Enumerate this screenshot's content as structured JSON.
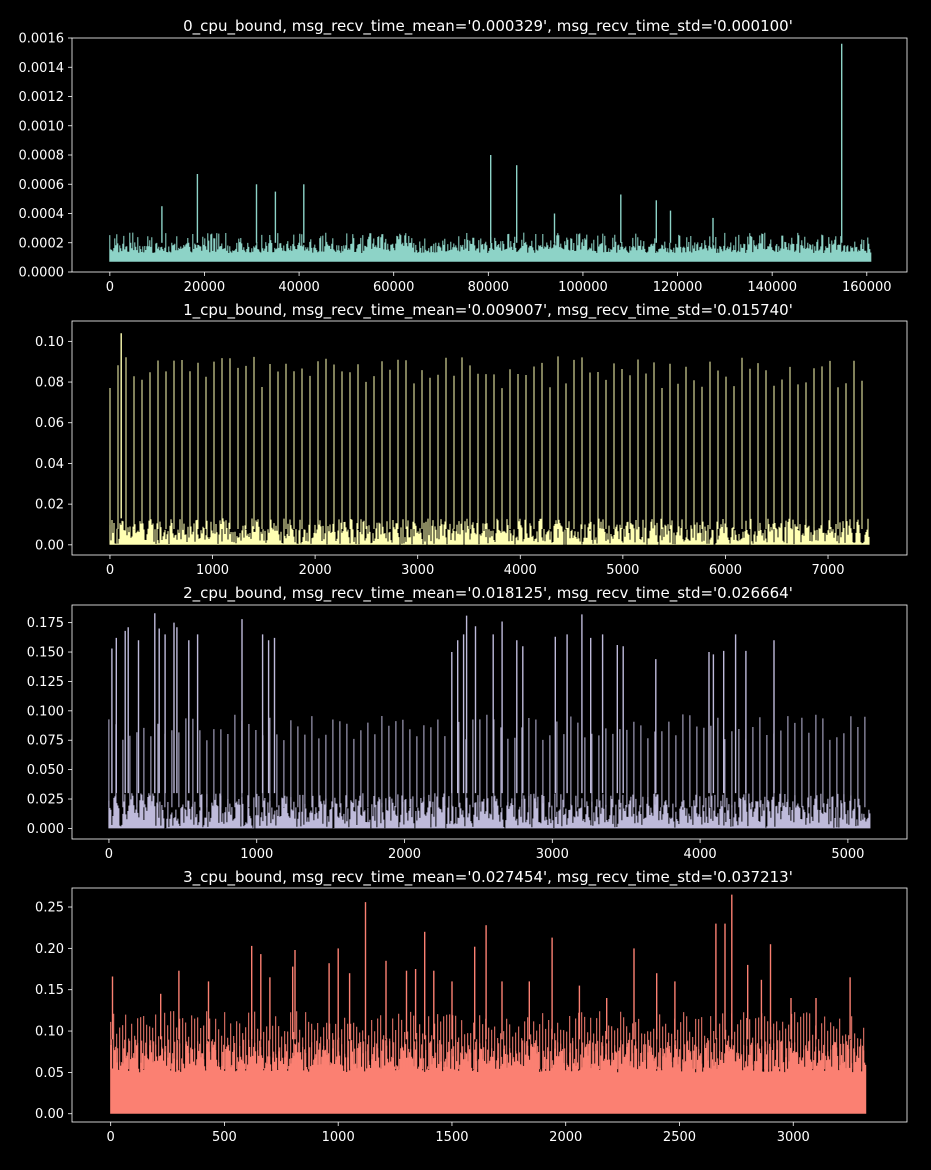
{
  "figure": {
    "background": "#000000",
    "foreground": "#ffffff"
  },
  "chart_data": [
    {
      "type": "line",
      "title": "0_cpu_bound, msg_recv_time_mean='0.000329', msg_recv_time_std='0.000100'",
      "color": "#8dd3c7",
      "xlim": [
        -8000,
        168500
      ],
      "ylim": [
        0.0,
        0.0016
      ],
      "x_ticks": [
        0,
        20000,
        40000,
        60000,
        80000,
        100000,
        120000,
        140000,
        160000
      ],
      "x_tick_labels": [
        "0",
        "20000",
        "40000",
        "60000",
        "80000",
        "100000",
        "120000",
        "140000",
        "160000"
      ],
      "y_ticks": [
        0.0,
        0.0002,
        0.0004,
        0.0006,
        0.0008,
        0.001,
        0.0012,
        0.0014,
        0.0016
      ],
      "y_tick_labels": [
        "0.0000",
        "0.0002",
        "0.0004",
        "0.0006",
        "0.0008",
        "0.0010",
        "0.0012",
        "0.0014",
        "0.0016"
      ],
      "x_range": [
        0,
        160800
      ],
      "baseline": 7e-05,
      "band": [
        0.00013,
        0.0002
      ],
      "whisker_max": 0.00027,
      "spikes": [
        {
          "x": 11000,
          "y": 0.00045
        },
        {
          "x": 18500,
          "y": 0.00067
        },
        {
          "x": 31000,
          "y": 0.0006
        },
        {
          "x": 35000,
          "y": 0.00055
        },
        {
          "x": 41000,
          "y": 0.0006
        },
        {
          "x": 80500,
          "y": 0.0008
        },
        {
          "x": 86000,
          "y": 0.00073
        },
        {
          "x": 94000,
          "y": 0.0004
        },
        {
          "x": 108000,
          "y": 0.00053
        },
        {
          "x": 115500,
          "y": 0.00049
        },
        {
          "x": 118500,
          "y": 0.00042
        },
        {
          "x": 127500,
          "y": 0.00037
        },
        {
          "x": 154700,
          "y": 0.00156
        }
      ]
    },
    {
      "type": "line",
      "title": "1_cpu_bound, msg_recv_time_mean='0.009007', msg_recv_time_std='0.015740'",
      "color": "#ffffb3",
      "xlim": [
        -370,
        7770
      ],
      "ylim": [
        -0.005,
        0.11
      ],
      "x_ticks": [
        0,
        1000,
        2000,
        3000,
        4000,
        5000,
        6000,
        7000
      ],
      "x_tick_labels": [
        "0",
        "1000",
        "2000",
        "3000",
        "4000",
        "5000",
        "6000",
        "7000"
      ],
      "y_ticks": [
        0.0,
        0.02,
        0.04,
        0.06,
        0.08,
        0.1
      ],
      "y_tick_labels": [
        "0.00",
        "0.02",
        "0.04",
        "0.06",
        "0.08",
        "0.10"
      ],
      "x_range": [
        0,
        7400
      ],
      "baseline": 0.0,
      "band": [
        0.0,
        0.013
      ],
      "peak_every": 28,
      "peak_range": [
        0.077,
        0.093
      ],
      "spikes": [
        {
          "x": 110,
          "y": 0.104
        }
      ]
    },
    {
      "type": "line",
      "title": "2_cpu_bound, msg_recv_time_mean='0.018125', msg_recv_time_std='0.026664'",
      "color": "#bebada",
      "xlim": [
        -250,
        5400
      ],
      "ylim": [
        -0.009,
        0.19
      ],
      "x_ticks": [
        0,
        1000,
        2000,
        3000,
        4000,
        5000
      ],
      "x_tick_labels": [
        "0",
        "1000",
        "2000",
        "3000",
        "4000",
        "5000"
      ],
      "y_ticks": [
        0.0,
        0.025,
        0.05,
        0.075,
        0.1,
        0.125,
        0.15,
        0.175
      ],
      "y_tick_labels": [
        "0.000",
        "0.025",
        "0.050",
        "0.075",
        "0.100",
        "0.125",
        "0.150",
        "0.175"
      ],
      "x_range": [
        0,
        5150
      ],
      "baseline": 0.0,
      "band": [
        0.0,
        0.03
      ],
      "peak_every": 22,
      "peak_range": [
        0.075,
        0.097
      ],
      "spikes": [
        {
          "x": 20,
          "y": 0.153
        },
        {
          "x": 50,
          "y": 0.162
        },
        {
          "x": 110,
          "y": 0.168
        },
        {
          "x": 130,
          "y": 0.171
        },
        {
          "x": 200,
          "y": 0.16
        },
        {
          "x": 310,
          "y": 0.183
        },
        {
          "x": 340,
          "y": 0.17
        },
        {
          "x": 380,
          "y": 0.165
        },
        {
          "x": 440,
          "y": 0.175
        },
        {
          "x": 460,
          "y": 0.171
        },
        {
          "x": 540,
          "y": 0.16
        },
        {
          "x": 600,
          "y": 0.165
        },
        {
          "x": 900,
          "y": 0.178
        },
        {
          "x": 1040,
          "y": 0.165
        },
        {
          "x": 1080,
          "y": 0.16
        },
        {
          "x": 1120,
          "y": 0.162
        },
        {
          "x": 2320,
          "y": 0.15
        },
        {
          "x": 2360,
          "y": 0.16
        },
        {
          "x": 2400,
          "y": 0.165
        },
        {
          "x": 2420,
          "y": 0.181
        },
        {
          "x": 2480,
          "y": 0.172
        },
        {
          "x": 2600,
          "y": 0.165
        },
        {
          "x": 2660,
          "y": 0.176
        },
        {
          "x": 2760,
          "y": 0.16
        },
        {
          "x": 2800,
          "y": 0.155
        },
        {
          "x": 3020,
          "y": 0.163
        },
        {
          "x": 3100,
          "y": 0.165
        },
        {
          "x": 3200,
          "y": 0.182
        },
        {
          "x": 3260,
          "y": 0.162
        },
        {
          "x": 3340,
          "y": 0.165
        },
        {
          "x": 3440,
          "y": 0.156
        },
        {
          "x": 3480,
          "y": 0.155
        },
        {
          "x": 3700,
          "y": 0.144
        },
        {
          "x": 4060,
          "y": 0.15
        },
        {
          "x": 4090,
          "y": 0.148
        },
        {
          "x": 4160,
          "y": 0.151
        },
        {
          "x": 4240,
          "y": 0.165
        },
        {
          "x": 4310,
          "y": 0.151
        },
        {
          "x": 4500,
          "y": 0.16
        }
      ]
    },
    {
      "type": "line",
      "title": "3_cpu_bound, msg_recv_time_mean='0.027454', msg_recv_time_std='0.037213'",
      "color": "#fb8072",
      "xlim": [
        -170,
        3500
      ],
      "ylim": [
        -0.01,
        0.273
      ],
      "x_ticks": [
        0,
        500,
        1000,
        1500,
        2000,
        2500,
        3000
      ],
      "x_tick_labels": [
        "0",
        "500",
        "1000",
        "1500",
        "2000",
        "2500",
        "3000"
      ],
      "y_ticks": [
        0.0,
        0.05,
        0.1,
        0.15,
        0.2,
        0.25
      ],
      "y_tick_labels": [
        "0.00",
        "0.05",
        "0.10",
        "0.15",
        "0.20",
        "0.25"
      ],
      "x_range": [
        0,
        3320
      ],
      "baseline": 0.0,
      "band": [
        0.05,
        0.09
      ],
      "peak_every": 10,
      "peak_range": [
        0.09,
        0.125
      ],
      "spikes": [
        {
          "x": 8,
          "y": 0.166
        },
        {
          "x": 220,
          "y": 0.145
        },
        {
          "x": 300,
          "y": 0.173
        },
        {
          "x": 430,
          "y": 0.16
        },
        {
          "x": 620,
          "y": 0.203
        },
        {
          "x": 660,
          "y": 0.193
        },
        {
          "x": 700,
          "y": 0.165
        },
        {
          "x": 800,
          "y": 0.178
        },
        {
          "x": 810,
          "y": 0.198
        },
        {
          "x": 960,
          "y": 0.182
        },
        {
          "x": 1000,
          "y": 0.2
        },
        {
          "x": 1050,
          "y": 0.17
        },
        {
          "x": 1120,
          "y": 0.256
        },
        {
          "x": 1210,
          "y": 0.185
        },
        {
          "x": 1300,
          "y": 0.173
        },
        {
          "x": 1340,
          "y": 0.175
        },
        {
          "x": 1380,
          "y": 0.22
        },
        {
          "x": 1420,
          "y": 0.173
        },
        {
          "x": 1500,
          "y": 0.16
        },
        {
          "x": 1600,
          "y": 0.202
        },
        {
          "x": 1650,
          "y": 0.228
        },
        {
          "x": 1720,
          "y": 0.16
        },
        {
          "x": 1840,
          "y": 0.16
        },
        {
          "x": 1940,
          "y": 0.213
        },
        {
          "x": 2060,
          "y": 0.155
        },
        {
          "x": 2180,
          "y": 0.14
        },
        {
          "x": 2300,
          "y": 0.2
        },
        {
          "x": 2400,
          "y": 0.17
        },
        {
          "x": 2480,
          "y": 0.16
        },
        {
          "x": 2660,
          "y": 0.23
        },
        {
          "x": 2700,
          "y": 0.23
        },
        {
          "x": 2730,
          "y": 0.265
        },
        {
          "x": 2800,
          "y": 0.18
        },
        {
          "x": 2860,
          "y": 0.162
        },
        {
          "x": 2900,
          "y": 0.205
        },
        {
          "x": 2990,
          "y": 0.14
        },
        {
          "x": 3100,
          "y": 0.14
        },
        {
          "x": 3250,
          "y": 0.165
        }
      ]
    }
  ]
}
